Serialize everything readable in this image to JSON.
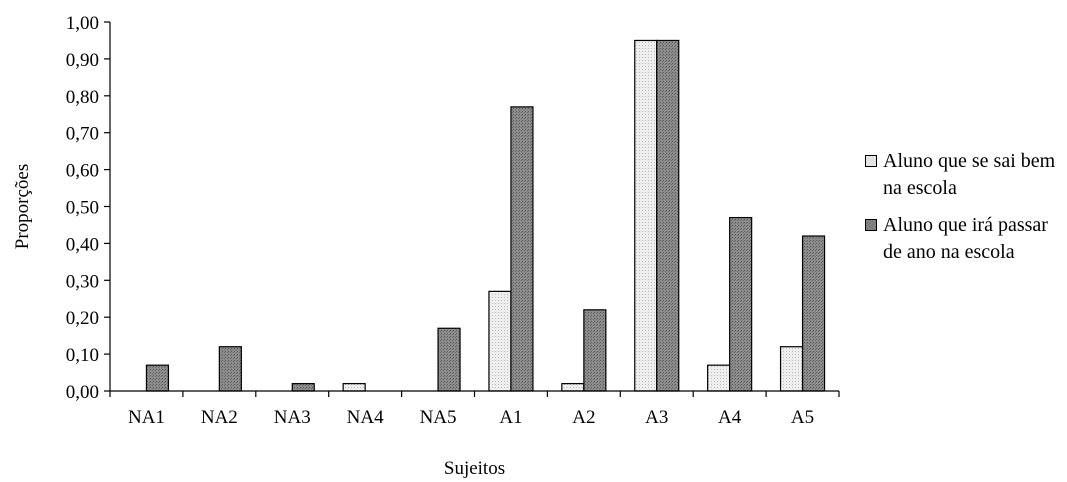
{
  "chart_data": {
    "type": "bar",
    "title": "",
    "xlabel": "Sujeitos",
    "ylabel": "Proporções",
    "ylim": [
      0,
      1
    ],
    "ytick_step": 0.1,
    "categories": [
      "NA1",
      "NA2",
      "NA3",
      "NA4",
      "NA5",
      "A1",
      "A2",
      "A3",
      "A4",
      "A5"
    ],
    "series": [
      {
        "name": "Aluno que se sai bem na escola",
        "color": "#e4e4e4",
        "values": [
          0.0,
          0.0,
          0.0,
          0.02,
          0.0,
          0.27,
          0.02,
          0.95,
          0.07,
          0.12
        ]
      },
      {
        "name": "Aluno que irá passar de ano na escola",
        "color": "#7f7f7f",
        "values": [
          0.07,
          0.12,
          0.02,
          0.0,
          0.17,
          0.77,
          0.22,
          0.95,
          0.47,
          0.42
        ]
      }
    ],
    "grid": false,
    "legend_position": "right"
  }
}
